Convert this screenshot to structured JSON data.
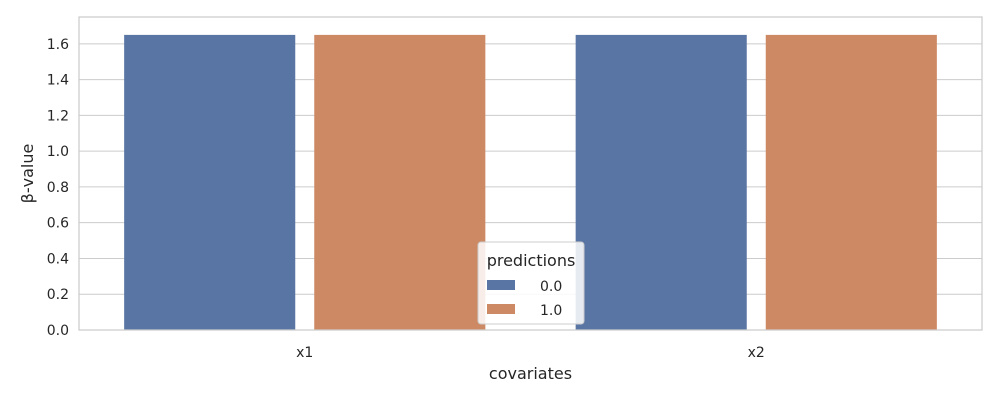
{
  "chart_data": {
    "type": "bar",
    "categories": [
      "x1",
      "x2"
    ],
    "series": [
      {
        "name": "0.0",
        "values": [
          1.65,
          1.65
        ],
        "color": "#5875a4"
      },
      {
        "name": "1.0",
        "values": [
          1.65,
          1.65
        ],
        "color": "#cc8963"
      }
    ],
    "xlabel": "covariates",
    "ylabel": "β-value",
    "ylim": [
      0,
      1.75
    ],
    "yticks": [
      0.0,
      0.2,
      0.4,
      0.6,
      0.8,
      1.0,
      1.2,
      1.4,
      1.6
    ],
    "ytick_labels": [
      "0.0",
      "0.2",
      "0.4",
      "0.6",
      "0.8",
      "1.0",
      "1.2",
      "1.4",
      "1.6"
    ],
    "grid": true,
    "grid_color": "#cccccc",
    "legend": {
      "title": "predictions",
      "placement": "bottom-center"
    }
  }
}
